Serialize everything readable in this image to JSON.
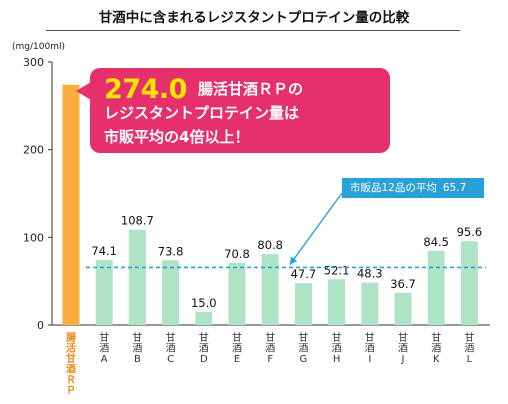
{
  "title": "甘酒中に含まれるレジスタントプロテイン量の比較",
  "callout": {
    "value": "274.0",
    "line1": "腸活甘酒ＲＰの",
    "line2": "レジスタントプロテイン量は",
    "line3": "市販平均の4倍以上！"
  },
  "average_label": "市販品12品の平均",
  "average_value": "65.7",
  "colors": {
    "highlight_bar": "#f8ae3c",
    "highlight_label": "#f08a1a",
    "bar": "#aee3c6",
    "average_line": "#29a0d8",
    "callout": "#e5306c",
    "callout_value": "#ffe600"
  },
  "chart_data": {
    "type": "bar",
    "ylabel": "(mg/100ml)",
    "ylim": [
      0,
      300
    ],
    "yticks": [
      0,
      100,
      200,
      300
    ],
    "categories": [
      "腸活甘酒ＲＰ",
      "甘酒A",
      "甘酒B",
      "甘酒C",
      "甘酒D",
      "甘酒E",
      "甘酒F",
      "甘酒G",
      "甘酒H",
      "甘酒I",
      "甘酒J",
      "甘酒K",
      "甘酒L"
    ],
    "values": [
      274.0,
      74.1,
      108.7,
      73.8,
      15.0,
      70.8,
      80.8,
      47.7,
      52.1,
      48.3,
      36.7,
      84.5,
      95.6
    ],
    "value_labels": [
      "",
      "74.1",
      "108.7",
      "73.8",
      "15.0",
      "70.8",
      "80.8",
      "47.7",
      "52.1",
      "48.3",
      "36.7",
      "84.5",
      "95.6"
    ],
    "average": 65.7,
    "grid": false
  }
}
